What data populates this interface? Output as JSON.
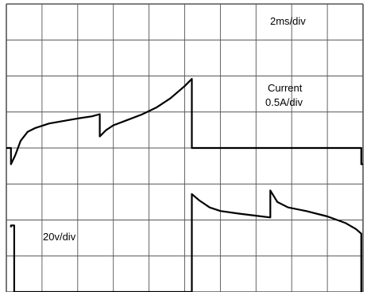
{
  "annotations": {
    "timebase": "2ms/div",
    "current_label_line1": "Current",
    "current_label_line2": "0.5A/div",
    "voltage_label": "20v/div"
  },
  "colors": {
    "grid": "#555555",
    "trace": "#000000",
    "background": "#ffffff"
  },
  "chart_data": {
    "type": "line",
    "grid": true,
    "xlim": [
      0,
      10
    ],
    "ylim": [
      0,
      8
    ],
    "x_divisions": 10,
    "y_divisions": 8,
    "legend": "none",
    "series": [
      {
        "points": [
          [
            0,
            4
          ],
          [
            0.13,
            4
          ],
          [
            0.13,
            3.55
          ],
          [
            0.25,
            3.8
          ],
          [
            0.4,
            4.2
          ],
          [
            0.6,
            4.45
          ],
          [
            0.8,
            4.55
          ],
          [
            1.2,
            4.68
          ],
          [
            1.6,
            4.75
          ],
          [
            2.0,
            4.82
          ],
          [
            2.4,
            4.88
          ],
          [
            2.62,
            4.94
          ],
          [
            2.62,
            4.32
          ],
          [
            2.8,
            4.5
          ],
          [
            3.0,
            4.63
          ],
          [
            3.4,
            4.78
          ],
          [
            3.8,
            4.93
          ],
          [
            4.2,
            5.12
          ],
          [
            4.6,
            5.38
          ],
          [
            5.0,
            5.72
          ],
          [
            5.2,
            5.92
          ],
          [
            5.2,
            4.0
          ],
          [
            9.95,
            4.0
          ],
          [
            9.95,
            3.55
          ],
          [
            10,
            3.55
          ]
        ]
      },
      {
        "points": [
          [
            0.13,
            1.8
          ],
          [
            0.13,
            1.85
          ],
          [
            0.22,
            1.85
          ],
          [
            0.22,
            0
          ],
          [
            5.2,
            0
          ],
          [
            5.2,
            2.72
          ],
          [
            5.4,
            2.55
          ],
          [
            5.7,
            2.35
          ],
          [
            6.0,
            2.25
          ],
          [
            6.5,
            2.18
          ],
          [
            7.0,
            2.12
          ],
          [
            7.4,
            2.07
          ],
          [
            7.4,
            2.82
          ],
          [
            7.6,
            2.5
          ],
          [
            7.9,
            2.35
          ],
          [
            8.4,
            2.25
          ],
          [
            9.0,
            2.1
          ],
          [
            9.5,
            1.92
          ],
          [
            9.8,
            1.75
          ],
          [
            9.95,
            1.62
          ],
          [
            9.95,
            0
          ]
        ]
      }
    ]
  }
}
